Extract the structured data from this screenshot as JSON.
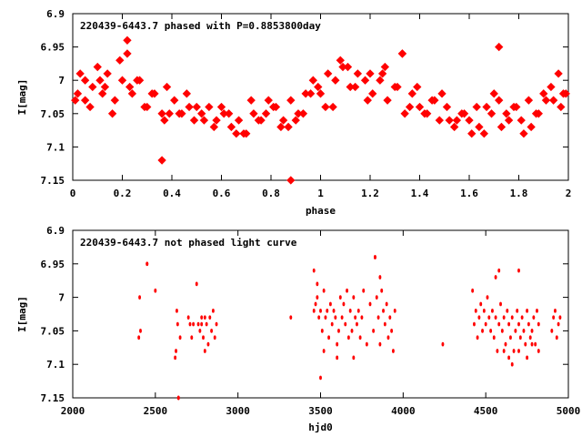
{
  "colors": {
    "points": "#ff0000",
    "axes": "#000000",
    "background": "#ffffff"
  },
  "chart_data": [
    {
      "type": "scatter",
      "title": "220439-6443.7 phased with P=0.8853800day",
      "xlabel": "phase",
      "ylabel": "I[mag]",
      "xlim": [
        0,
        2
      ],
      "ylim": [
        6.9,
        7.15
      ],
      "y_inverted": true,
      "grid": false,
      "x_ticks": [
        0,
        0.2,
        0.4,
        0.6,
        0.8,
        1,
        1.2,
        1.4,
        1.6,
        1.8,
        2
      ],
      "x_tick_labels": [
        "0",
        "0.2",
        "0.4",
        "0.6",
        "0.8",
        "1",
        "1.2",
        "1.4",
        "1.6",
        "1.8",
        "2"
      ],
      "y_ticks": [
        6.9,
        6.95,
        7.0,
        7.05,
        7.1,
        7.15
      ],
      "y_tick_labels": [
        "6.9",
        "6.95",
        "7",
        "7.05",
        "7.1",
        "7.15"
      ],
      "marker": "large",
      "series": [
        {
          "x": [
            0.01,
            0.03,
            0.05,
            0.08,
            0.1,
            0.12,
            0.14,
            0.17,
            0.2,
            0.22,
            0.24,
            0.27,
            0.3,
            0.33,
            0.36,
            0.38,
            0.41,
            0.43,
            0.46,
            0.49,
            0.52,
            0.55,
            0.58,
            0.61,
            0.64,
            0.67,
            0.7,
            0.73,
            0.76,
            0.79,
            0.82,
            0.85,
            0.88,
            0.91,
            0.94,
            0.97,
            1.0,
            1.03,
            1.06,
            1.09,
            1.12,
            1.15,
            1.18,
            1.21,
            1.24,
            1.27,
            1.3,
            1.33,
            1.36,
            1.39,
            1.42,
            1.45,
            1.48,
            1.51,
            1.54,
            1.57,
            1.6,
            1.63,
            1.66,
            1.69,
            1.72,
            1.75,
            1.78,
            1.81,
            1.84,
            1.87,
            1.9,
            1.93,
            1.96,
            1.99,
            0.05,
            0.11,
            0.16,
            0.23,
            0.29,
            0.37,
            0.44,
            0.5,
            0.57,
            0.63,
            0.69,
            0.75,
            0.81,
            0.87,
            0.93,
            0.99,
            1.05,
            1.11,
            1.19,
            1.25,
            1.31,
            1.37,
            1.43,
            1.49,
            1.55,
            1.61,
            1.67,
            1.73,
            1.79,
            1.85,
            1.91,
            1.97,
            0.22,
            0.36,
            0.88,
            1.33,
            1.72,
            0.02,
            0.07,
            0.13,
            0.19,
            0.26,
            0.32,
            0.39,
            0.47,
            0.53,
            0.6,
            0.66,
            0.72,
            0.78,
            0.84,
            0.9,
            0.96,
            1.02,
            1.08,
            1.14,
            1.2,
            1.26,
            1.34,
            1.4,
            1.46,
            1.52,
            1.58,
            1.64,
            1.7,
            1.76,
            1.82,
            1.88,
            1.94,
            1.98
          ],
          "y": [
            7.03,
            6.99,
            7.0,
            7.01,
            6.98,
            7.02,
            6.99,
            7.03,
            7.0,
            6.96,
            7.02,
            7.0,
            7.04,
            7.02,
            7.05,
            7.01,
            7.03,
            7.05,
            7.02,
            7.06,
            7.05,
            7.04,
            7.06,
            7.05,
            7.07,
            7.06,
            7.08,
            7.05,
            7.06,
            7.03,
            7.04,
            7.06,
            7.03,
            7.05,
            7.02,
            7.0,
            7.02,
            6.99,
            7.0,
            6.98,
            7.01,
            6.99,
            7.0,
            7.02,
            7.0,
            7.03,
            7.01,
            6.96,
            7.04,
            7.01,
            7.05,
            7.03,
            7.06,
            7.04,
            7.07,
            7.05,
            7.06,
            7.04,
            7.08,
            7.05,
            7.03,
            7.05,
            7.04,
            7.06,
            7.03,
            7.05,
            7.02,
            7.01,
            6.99,
            7.02,
            7.03,
            7.0,
            7.05,
            7.01,
            7.04,
            7.06,
            7.05,
            7.04,
            7.07,
            7.05,
            7.08,
            7.06,
            7.04,
            7.07,
            7.05,
            7.01,
            7.04,
            6.98,
            7.03,
            6.99,
            7.01,
            7.02,
            7.05,
            7.02,
            7.06,
            7.08,
            7.04,
            7.07,
            7.04,
            7.07,
            7.03,
            7.04,
            6.94,
            7.12,
            7.15,
            6.96,
            6.95,
            7.02,
            7.04,
            7.01,
            6.97,
            7.0,
            7.02,
            7.05,
            7.04,
            7.06,
            7.04,
            7.08,
            7.03,
            7.05,
            7.07,
            7.06,
            7.02,
            7.04,
            6.97,
            7.01,
            6.99,
            6.98,
            7.05,
            7.04,
            7.03,
            7.06,
            7.05,
            7.07,
            7.02,
            7.06,
            7.08,
            7.05,
            7.03,
            7.02
          ]
        }
      ]
    },
    {
      "type": "scatter",
      "title": "220439-6443.7 not phased light curve",
      "xlabel": "hjd0",
      "ylabel": "I[mag]",
      "xlim": [
        2000,
        5000
      ],
      "ylim": [
        6.9,
        7.15
      ],
      "y_inverted": true,
      "grid": false,
      "x_ticks": [
        2000,
        2500,
        3000,
        3500,
        4000,
        4500,
        5000
      ],
      "x_tick_labels": [
        "2000",
        "2500",
        "3000",
        "3500",
        "4000",
        "4500",
        "5000"
      ],
      "y_ticks": [
        6.9,
        6.95,
        7.0,
        7.05,
        7.1,
        7.15
      ],
      "y_tick_labels": [
        "6.9",
        "6.95",
        "7",
        "7.05",
        "7.1",
        "7.15"
      ],
      "marker": "small",
      "series": [
        {
          "x": [
            2400,
            2405,
            2410,
            2450,
            2500,
            2620,
            2625,
            2630,
            2635,
            2640,
            2650,
            2700,
            2710,
            2720,
            2730,
            2750,
            2760,
            2770,
            2780,
            2790,
            2800,
            2810,
            2820,
            2830,
            2840,
            2850,
            2860,
            2870,
            3320,
            3460,
            3470,
            3480,
            3490,
            3500,
            3510,
            3520,
            3530,
            3540,
            3550,
            3560,
            3570,
            3580,
            3590,
            3600,
            3610,
            3620,
            3630,
            3640,
            3650,
            3660,
            3670,
            3680,
            3690,
            3700,
            3710,
            3720,
            3730,
            3740,
            3750,
            3760,
            3780,
            3800,
            3820,
            3830,
            3840,
            3850,
            3860,
            3870,
            3880,
            3890,
            3900,
            3910,
            3920,
            3930,
            3940,
            3950,
            4240,
            4420,
            4430,
            4440,
            4450,
            4460,
            4470,
            4480,
            4490,
            4500,
            4510,
            4520,
            4530,
            4540,
            4550,
            4560,
            4570,
            4580,
            4590,
            4600,
            4610,
            4620,
            4630,
            4640,
            4650,
            4660,
            4670,
            4680,
            4690,
            4700,
            4710,
            4720,
            4730,
            4740,
            4750,
            4760,
            4770,
            4780,
            4790,
            4800,
            4810,
            4820,
            4900,
            4910,
            4920,
            4930,
            4940,
            4950,
            3500,
            2640,
            2450,
            3830,
            4580,
            3480,
            3860,
            4700,
            4560,
            3520,
            3600,
            3700,
            4610,
            4640,
            4660,
            4700,
            4750,
            4780,
            4820,
            2780,
            2800,
            3460
          ],
          "y": [
            7.06,
            7.0,
            7.05,
            6.95,
            6.99,
            7.09,
            7.08,
            7.02,
            7.04,
            7.15,
            7.06,
            7.03,
            7.04,
            7.06,
            7.04,
            6.98,
            7.04,
            7.05,
            7.03,
            7.06,
            7.08,
            7.04,
            7.07,
            7.03,
            7.05,
            7.02,
            7.06,
            7.04,
            7.03,
            6.96,
            7.01,
            7.0,
            7.03,
            7.02,
            7.05,
            6.99,
            7.03,
            7.02,
            7.06,
            7.01,
            7.04,
            7.02,
            7.03,
            7.07,
            7.05,
            7.0,
            7.03,
            7.01,
            7.04,
            6.99,
            7.06,
            7.02,
            7.05,
            7.0,
            7.03,
            7.04,
            7.02,
            7.06,
            7.03,
            6.99,
            7.07,
            7.01,
            7.05,
            6.94,
            7.0,
            7.03,
            7.07,
            6.99,
            7.02,
            7.04,
            7.01,
            7.06,
            7.03,
            7.05,
            7.08,
            7.02,
            7.07,
            6.99,
            7.04,
            7.02,
            7.06,
            7.03,
            7.01,
            7.05,
            7.02,
            7.04,
            7.0,
            7.03,
            7.05,
            7.02,
            7.06,
            7.03,
            7.08,
            7.04,
            7.01,
            7.05,
            7.03,
            7.07,
            7.02,
            7.04,
            7.06,
            7.03,
            7.08,
            7.05,
            7.02,
            7.04,
            7.06,
            7.03,
            7.05,
            7.07,
            7.02,
            7.04,
            7.06,
            7.05,
            7.03,
            7.07,
            7.02,
            7.04,
            7.05,
            7.03,
            7.02,
            7.06,
            7.04,
            7.03,
            7.12,
            7.15,
            6.95,
            6.94,
            6.96,
            6.98,
            6.97,
            6.96,
            6.97,
            7.08,
            7.09,
            7.09,
            7.08,
            7.09,
            7.1,
            7.08,
            7.09,
            7.07,
            7.08,
            7.04,
            7.03,
            7.02
          ]
        }
      ]
    }
  ]
}
